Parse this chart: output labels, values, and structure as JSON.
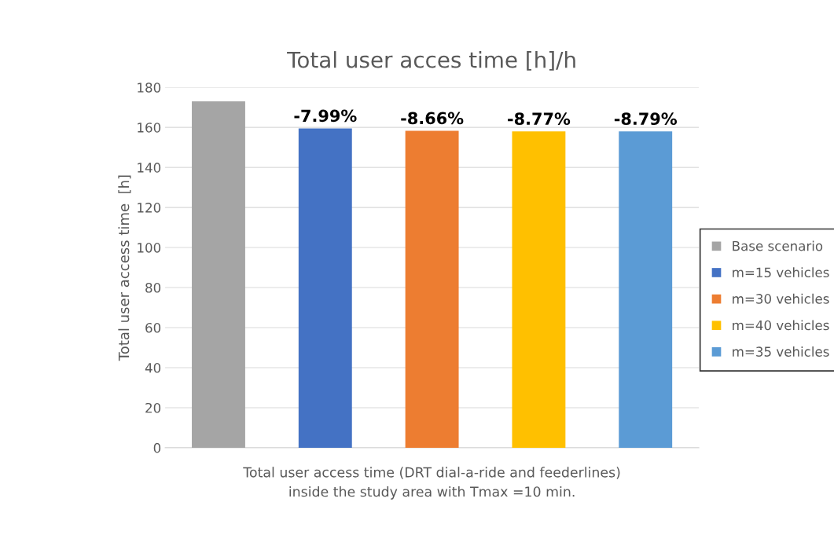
{
  "chart_data": {
    "type": "bar",
    "title": "Total user acces time [h]/h",
    "xlabel": "Total user access time (DRT dial-a-ride and feederlines)\ninside the study area with Tmax =10 min.",
    "ylabel": "Total user access time  [h]",
    "categories": [
      null
    ],
    "series": [
      {
        "name": "Base scenario",
        "color": "#a5a5a5",
        "values": [
          173
        ]
      },
      {
        "name": "m=15 vehicles",
        "color": "#4472c4",
        "values": [
          159.5
        ]
      },
      {
        "name": "m=30 vehicles",
        "color": "#ed7d31",
        "values": [
          158.3
        ]
      },
      {
        "name": "m=40 vehicles",
        "color": "#ffc000",
        "values": [
          158
        ]
      },
      {
        "name": "m=35 vehicles",
        "color": "#5b9bd5",
        "values": [
          158
        ]
      }
    ],
    "annotations": [
      {
        "text": "-7.99%",
        "y": 159.5
      },
      {
        "text": "-8.66%",
        "y": 158.3
      },
      {
        "text": "-8.77%",
        "y": 158
      },
      {
        "text": "-8.79%",
        "y": 158
      }
    ],
    "ylim": [
      0,
      180
    ],
    "yticks": [
      0,
      20,
      40,
      60,
      80,
      100,
      120,
      140,
      160,
      180
    ],
    "grid": "y",
    "legend": "right"
  }
}
